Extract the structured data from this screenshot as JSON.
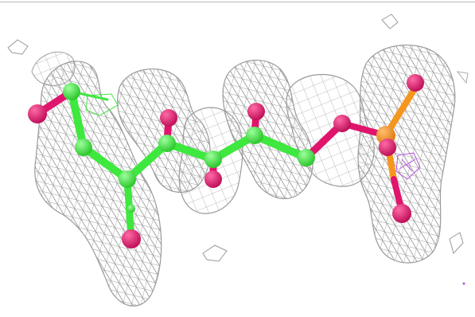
{
  "colors": {
    "background": "#ffffff",
    "mesh": "#9a9a9a",
    "carbon": "#3ee83e",
    "oxygen": "#e0146c",
    "phosphorus": "#f5961e",
    "hydrogen_mesh": "#b84fe0",
    "frame_line": "#b8b8b8"
  },
  "icons": {
    "scene": "electron-density-mesh-with-ball-and-stick-molecule"
  }
}
